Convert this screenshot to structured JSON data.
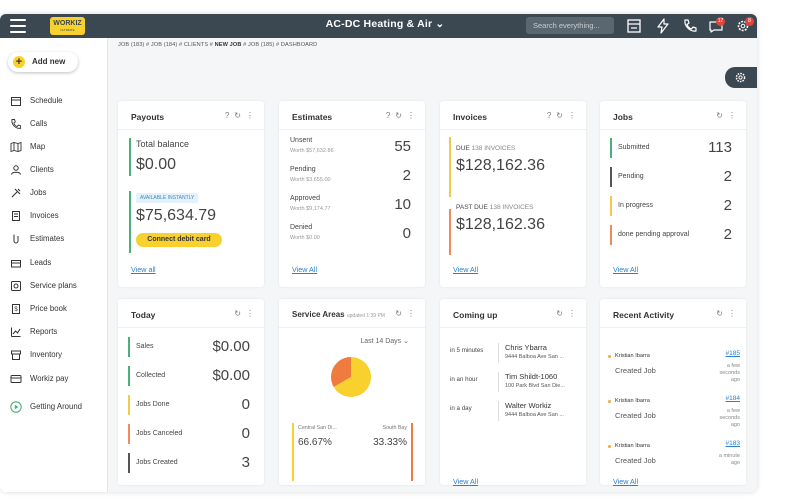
{
  "app": {
    "company": "AC-DC Heating & Air",
    "logo_text": "WORKIZ",
    "logo_sub": "ULTIMATE",
    "search_placeholder": "Search everything...",
    "message_badge": "17",
    "settings_badge": "8"
  },
  "breadcrumb": {
    "pre": "JOB (183) # JOB (184) # CLIENTS #",
    "current": "NEW JOB",
    "post": "# JOB (185) # DASHBOARD"
  },
  "sidebar": {
    "add_new": "Add new",
    "items": [
      {
        "label": "Schedule",
        "icon": "calendar-icon"
      },
      {
        "label": "Calls",
        "icon": "phone-icon"
      },
      {
        "label": "Map",
        "icon": "map-icon"
      },
      {
        "label": "Clients",
        "icon": "clients-icon"
      },
      {
        "label": "Jobs",
        "icon": "tools-icon"
      },
      {
        "label": "Invoices",
        "icon": "invoice-icon"
      },
      {
        "label": "Estimates",
        "icon": "estimate-icon"
      },
      {
        "label": "Leads",
        "icon": "leads-icon"
      },
      {
        "label": "Service plans",
        "icon": "service-plans-icon"
      },
      {
        "label": "Price book",
        "icon": "price-book-icon"
      },
      {
        "label": "Reports",
        "icon": "reports-icon"
      },
      {
        "label": "Inventory",
        "icon": "inventory-icon"
      },
      {
        "label": "Workiz pay",
        "icon": "card-icon"
      },
      {
        "label": "Getting Around",
        "icon": "play-icon"
      }
    ]
  },
  "payouts": {
    "title": "Payouts",
    "total_label": "Total balance",
    "total_value": "$0.00",
    "instant_badge": "AVAILABLE INSTANTLY",
    "instant_value": "$75,634.79",
    "connect_button": "Connect debit card",
    "view_all": "View all"
  },
  "estimates": {
    "title": "Estimates",
    "rows": [
      {
        "label": "Unsent",
        "worth": "Worth $57,632.86",
        "count": "55"
      },
      {
        "label": "Pending",
        "worth": "Worth $3,655.00",
        "count": "2"
      },
      {
        "label": "Approved",
        "worth": "Worth $9,174.77",
        "count": "10"
      },
      {
        "label": "Denied",
        "worth": "Worth $0.00",
        "count": "0"
      }
    ],
    "view_all": "View All"
  },
  "invoices": {
    "title": "Invoices",
    "due_label": "DUE",
    "due_count": "138 INVOICES",
    "due_value": "$128,162.36",
    "past_label": "PAST DUE",
    "past_count": "138 INVOICES",
    "past_value": "$128,162.36",
    "view_all": "View All"
  },
  "jobs": {
    "title": "Jobs",
    "rows": [
      {
        "label": "Submitted",
        "count": "113",
        "color": "#4caf7a"
      },
      {
        "label": "Pending",
        "count": "2",
        "color": "#555555"
      },
      {
        "label": "In progress",
        "count": "2",
        "color": "#f2c94c"
      },
      {
        "label": "done pending approval",
        "count": "2",
        "color": "#f28b5b"
      }
    ],
    "view_all": "View All"
  },
  "today": {
    "title": "Today",
    "rows": [
      {
        "label": "Sales",
        "value": "$0.00",
        "color": "#4caf7a"
      },
      {
        "label": "Collected",
        "value": "$0.00",
        "color": "#4caf7a"
      },
      {
        "label": "Jobs Done",
        "value": "0",
        "color": "#f2c94c"
      },
      {
        "label": "Jobs Canceled",
        "value": "0",
        "color": "#f28b5b"
      },
      {
        "label": "Jobs Created",
        "value": "3",
        "color": "#555555"
      }
    ]
  },
  "service_areas": {
    "title": "Service Areas",
    "updated": "updated 1:39 PM",
    "range": "Last 14 Days",
    "areas": [
      {
        "name": "Central San Di...",
        "percent": "66.67%",
        "fraction": 0.6667,
        "color": "#f8d12f"
      },
      {
        "name": "South Bay",
        "percent": "33.33%",
        "fraction": 0.3333,
        "color": "#f07b3f"
      }
    ]
  },
  "coming_up": {
    "title": "Coming up",
    "rows": [
      {
        "when": "in 5 minutes",
        "name": "Chris Ybarra",
        "address": "9444 Balboa Ave San ..."
      },
      {
        "when": "in an hour",
        "name": "Tim Shildt-1060",
        "address": "100 Park Blvd San Die..."
      },
      {
        "when": "in a day",
        "name": "Walter Workiz",
        "address": "9444 Balboa Ave San ..."
      }
    ],
    "view_all": "View All"
  },
  "recent_activity": {
    "title": "Recent Activity",
    "items": [
      {
        "user": "Kristian Ibarra",
        "action": "Created Job",
        "link": "#185",
        "time": "a few seconds ago"
      },
      {
        "user": "Kristian Ibarra",
        "action": "Created Job",
        "link": "#184",
        "time": "a few seconds ago"
      },
      {
        "user": "Kristian Ibarra",
        "action": "Created Job",
        "link": "#183",
        "time": "a minute ago"
      }
    ],
    "view_all": "View All"
  }
}
